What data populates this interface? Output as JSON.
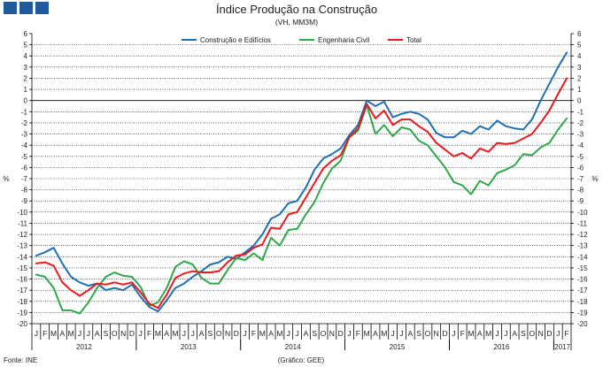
{
  "header": {
    "badges": [
      "box-1",
      "box-2",
      "box-3"
    ],
    "badge_color": "#1f5b9c"
  },
  "footer": {
    "source": "Fonte: INE",
    "credit": "(Gráfico: GEE)"
  },
  "chart_data": {
    "type": "line",
    "title": "Índice Produção na Construção",
    "subtitle": "(VH, MM3M)",
    "ylabel_left": "%",
    "ylabel_right": "%",
    "ylim": [
      -20,
      6
    ],
    "yticks": [
      6,
      5,
      4,
      3,
      2,
      1,
      0,
      -1,
      -2,
      -3,
      -4,
      -5,
      -6,
      -7,
      -8,
      -9,
      -10,
      -11,
      -12,
      -13,
      -14,
      -15,
      -16,
      -17,
      -18,
      -19,
      -20
    ],
    "grid": true,
    "legend_position": "top-center",
    "x_months": [
      "J",
      "F",
      "M",
      "A",
      "M",
      "J",
      "J",
      "A",
      "S",
      "O",
      "N",
      "D",
      "J",
      "F",
      "M",
      "A",
      "M",
      "J",
      "J",
      "A",
      "S",
      "O",
      "N",
      "D",
      "J",
      "F",
      "M",
      "A",
      "M",
      "J",
      "J",
      "A",
      "S",
      "O",
      "N",
      "D",
      "J",
      "F",
      "M",
      "A",
      "M",
      "J",
      "J",
      "A",
      "S",
      "O",
      "N",
      "D",
      "J",
      "F",
      "M",
      "A",
      "M",
      "J",
      "J",
      "A",
      "S",
      "O",
      "N",
      "D",
      "J",
      "F"
    ],
    "x_years": [
      {
        "label": "2012",
        "start": 0,
        "end": 11
      },
      {
        "label": "2013",
        "start": 12,
        "end": 23
      },
      {
        "label": "2014",
        "start": 24,
        "end": 35
      },
      {
        "label": "2015",
        "start": 36,
        "end": 47
      },
      {
        "label": "2016",
        "start": 48,
        "end": 59
      },
      {
        "label": "2017",
        "start": 60,
        "end": 61
      }
    ],
    "series": [
      {
        "name": "Construção e Edifícios",
        "color": "#1f6fb5",
        "values": [
          -13.9,
          -13.6,
          -13.2,
          -14.6,
          -15.8,
          -16.3,
          -16.6,
          -16.4,
          -17.0,
          -16.8,
          -17.0,
          -16.5,
          -17.6,
          -18.5,
          -18.9,
          -17.9,
          -16.8,
          -16.4,
          -15.8,
          -15.3,
          -14.7,
          -14.5,
          -14.0,
          -14.2,
          -13.6,
          -13.0,
          -12.0,
          -10.6,
          -10.2,
          -9.2,
          -9.0,
          -7.8,
          -6.2,
          -5.2,
          -4.8,
          -4.3,
          -3.1,
          -2.2,
          0.0,
          -0.5,
          -0.1,
          -1.5,
          -1.2,
          -1.0,
          -1.2,
          -1.7,
          -2.9,
          -3.3,
          -3.3,
          -2.7,
          -3.0,
          -2.3,
          -2.6,
          -1.8,
          -2.3,
          -2.5,
          -2.6,
          -1.7,
          0.0,
          1.5,
          3.0,
          4.3
        ]
      },
      {
        "name": "Engenharia Civil",
        "color": "#2ea84a",
        "values": [
          -15.6,
          -15.8,
          -16.8,
          -18.8,
          -18.8,
          -19.1,
          -18.1,
          -16.8,
          -15.8,
          -15.4,
          -15.7,
          -15.8,
          -16.7,
          -18.4,
          -18.1,
          -16.8,
          -14.9,
          -14.4,
          -14.7,
          -15.9,
          -16.4,
          -16.4,
          -15.2,
          -14.1,
          -14.3,
          -13.7,
          -14.3,
          -12.3,
          -13.0,
          -11.6,
          -11.5,
          -10.2,
          -9.1,
          -7.4,
          -6.1,
          -5.4,
          -3.3,
          -2.7,
          -0.4,
          -3.0,
          -2.2,
          -3.2,
          -2.4,
          -2.6,
          -3.6,
          -4.0,
          -5.0,
          -6.0,
          -7.3,
          -7.6,
          -8.4,
          -7.2,
          -7.6,
          -6.5,
          -6.2,
          -5.8,
          -4.8,
          -4.9,
          -4.2,
          -3.8,
          -2.6,
          -1.6
        ]
      },
      {
        "name": "Total",
        "color": "#e8191f",
        "values": [
          -14.6,
          -14.5,
          -14.8,
          -16.3,
          -17.0,
          -17.5,
          -17.0,
          -16.4,
          -16.5,
          -16.3,
          -16.5,
          -16.3,
          -17.2,
          -18.2,
          -18.6,
          -17.4,
          -15.9,
          -15.5,
          -15.3,
          -15.4,
          -15.4,
          -15.3,
          -14.5,
          -13.9,
          -13.8,
          -13.2,
          -12.9,
          -11.4,
          -11.5,
          -10.2,
          -10.0,
          -8.7,
          -7.4,
          -6.1,
          -5.4,
          -4.9,
          -3.3,
          -2.5,
          -0.3,
          -1.6,
          -0.9,
          -2.2,
          -1.7,
          -1.7,
          -2.3,
          -2.8,
          -3.8,
          -4.4,
          -5.0,
          -4.7,
          -5.2,
          -4.3,
          -4.6,
          -3.8,
          -3.9,
          -3.8,
          -3.4,
          -3.0,
          -2.0,
          -0.9,
          0.6,
          2.0
        ]
      }
    ]
  }
}
